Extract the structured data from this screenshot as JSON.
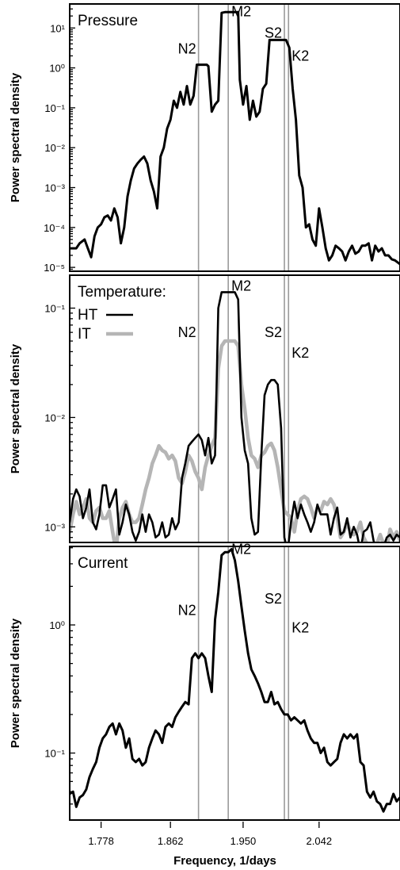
{
  "chart_data": [
    {
      "type": "line",
      "title": "Pressure",
      "ylabel": "Power spectral density",
      "yscale": "log",
      "ylim": [
        8e-06,
        40
      ],
      "xlim": [
        1.74,
        2.14
      ],
      "y_ticks": [
        1e-05,
        0.0001,
        0.001,
        0.01,
        0.1,
        1,
        10
      ],
      "y_tick_labels": [
        "10⁻⁵",
        "10⁻⁴",
        "10⁻³",
        "10⁻²",
        "10⁻¹",
        "10⁰",
        "10¹"
      ],
      "constituents": [
        {
          "name": "N2",
          "x": 1.896,
          "label_y": 3.0
        },
        {
          "name": "M2",
          "x": 1.932,
          "label_y": 26
        },
        {
          "name": "S2",
          "x": 2.0,
          "label_y": 7.5
        },
        {
          "name": "K2",
          "x": 2.005,
          "label_y": 2.0
        }
      ],
      "series": [
        {
          "color": "#000000",
          "x": [
            1.74,
            1.748,
            1.752,
            1.758,
            1.762,
            1.766,
            1.77,
            1.774,
            1.778,
            1.782,
            1.786,
            1.79,
            1.794,
            1.798,
            1.802,
            1.806,
            1.81,
            1.814,
            1.818,
            1.822,
            1.826,
            1.83,
            1.834,
            1.838,
            1.842,
            1.846,
            1.85,
            1.854,
            1.858,
            1.862,
            1.866,
            1.87,
            1.874,
            1.878,
            1.882,
            1.886,
            1.89,
            1.894,
            1.898,
            1.902,
            1.906,
            1.908,
            1.912,
            1.916,
            1.92,
            1.924,
            1.928,
            1.932,
            1.936,
            1.94,
            1.944,
            1.946,
            1.95,
            1.954,
            1.958,
            1.962,
            1.966,
            1.97,
            1.974,
            1.978,
            1.982,
            1.986,
            1.99,
            1.994,
            1.998,
            2.002,
            2.006,
            2.01,
            2.014,
            2.018,
            2.022,
            2.026,
            2.03,
            2.034,
            2.038,
            2.042,
            2.046,
            2.05,
            2.054,
            2.058,
            2.062,
            2.066,
            2.07,
            2.074,
            2.078,
            2.082,
            2.086,
            2.09,
            2.094,
            2.098,
            2.102,
            2.106,
            2.11,
            2.114,
            2.118,
            2.122,
            2.126,
            2.13,
            2.134,
            2.14
          ],
          "y": [
            3e-05,
            3e-05,
            4e-05,
            5e-05,
            3e-05,
            1.8e-05,
            6e-05,
            0.0001,
            0.00012,
            0.00018,
            0.0002,
            0.00015,
            0.0003,
            0.00018,
            4e-05,
            0.0001,
            0.0006,
            0.0015,
            0.003,
            0.004,
            0.005,
            0.006,
            0.004,
            0.0015,
            0.0008,
            0.0003,
            0.006,
            0.01,
            0.03,
            0.05,
            0.15,
            0.1,
            0.25,
            0.12,
            0.35,
            0.12,
            0.2,
            1.2,
            1.2,
            1.2,
            1.2,
            1.1,
            0.08,
            0.12,
            0.15,
            24,
            25,
            25,
            25,
            25,
            25,
            0.5,
            0.12,
            0.35,
            0.05,
            0.15,
            0.06,
            0.08,
            0.3,
            0.4,
            5,
            5,
            5,
            5,
            5,
            5,
            3.2,
            0.3,
            0.05,
            0.002,
            0.001,
            0.0001,
            0.00012,
            5e-05,
            3.5e-05,
            0.0003,
            0.0001,
            3e-05,
            1.5e-05,
            2e-05,
            3.5e-05,
            3e-05,
            2.5e-05,
            1.5e-05,
            2.5e-05,
            3.5e-05,
            2.2e-05,
            2.5e-05,
            3.5e-05,
            3.5e-05,
            4e-05,
            1.5e-05,
            3.5e-05,
            2.5e-05,
            3e-05,
            2e-05,
            2e-05,
            1.6e-05,
            1.5e-05,
            1.2e-05
          ]
        }
      ]
    },
    {
      "type": "line",
      "title": "Temperature:",
      "ylabel": "Power spectral density",
      "yscale": "log",
      "ylim": [
        0.00072,
        0.2
      ],
      "xlim": [
        1.74,
        2.14
      ],
      "y_ticks": [
        0.001,
        0.01,
        0.1
      ],
      "y_tick_labels": [
        "10⁻³",
        "10⁻²",
        "10⁻¹"
      ],
      "legend": {
        "position": "top-left",
        "entries": [
          {
            "label": "HT",
            "color": "#000000"
          },
          {
            "label": "IT",
            "color": "#b5b5b5"
          }
        ]
      },
      "constituents": [
        {
          "name": "N2",
          "x": 1.896,
          "label_y": 0.06
        },
        {
          "name": "M2",
          "x": 1.932,
          "label_y": 0.16
        },
        {
          "name": "S2",
          "x": 2.0,
          "label_y": 0.06
        },
        {
          "name": "K2",
          "x": 2.005,
          "label_y": 0.039
        }
      ],
      "series": [
        {
          "name": "HT",
          "color": "#000000",
          "x": [
            1.74,
            1.744,
            1.748,
            1.752,
            1.756,
            1.76,
            1.764,
            1.768,
            1.772,
            1.776,
            1.78,
            1.784,
            1.788,
            1.792,
            1.796,
            1.8,
            1.804,
            1.808,
            1.812,
            1.816,
            1.82,
            1.824,
            1.828,
            1.832,
            1.836,
            1.84,
            1.844,
            1.848,
            1.852,
            1.856,
            1.86,
            1.864,
            1.868,
            1.872,
            1.876,
            1.88,
            1.884,
            1.888,
            1.892,
            1.896,
            1.9,
            1.904,
            1.908,
            1.912,
            1.916,
            1.92,
            1.924,
            1.928,
            1.932,
            1.936,
            1.94,
            1.944,
            1.948,
            1.952,
            1.956,
            1.96,
            1.964,
            1.968,
            1.972,
            1.976,
            1.98,
            1.984,
            1.988,
            1.992,
            1.996,
            2.0,
            2.004,
            2.008,
            2.012,
            2.016,
            2.02,
            2.024,
            2.028,
            2.032,
            2.036,
            2.04,
            2.044,
            2.048,
            2.052,
            2.056,
            2.06,
            2.064,
            2.068,
            2.072,
            2.076,
            2.08,
            2.084,
            2.088,
            2.092,
            2.096,
            2.1,
            2.104,
            2.108,
            2.112,
            2.116,
            2.12,
            2.124,
            2.128,
            2.132,
            2.136,
            2.14
          ],
          "y": [
            0.0011,
            0.0018,
            0.0022,
            0.0019,
            0.0012,
            0.0015,
            0.0022,
            0.0011,
            0.00095,
            0.0013,
            0.0024,
            0.0024,
            0.0015,
            0.0018,
            0.0022,
            0.00085,
            0.0011,
            0.0016,
            0.0013,
            0.0009,
            0.00075,
            0.0009,
            0.0013,
            0.0009,
            0.0013,
            0.0011,
            0.0008,
            0.00085,
            0.0011,
            0.0008,
            0.00085,
            0.0012,
            0.00095,
            0.0011,
            0.0028,
            0.0038,
            0.0055,
            0.006,
            0.0065,
            0.007,
            0.0062,
            0.0045,
            0.0065,
            0.0038,
            0.0045,
            0.1,
            0.14,
            0.14,
            0.14,
            0.14,
            0.14,
            0.12,
            0.01,
            0.005,
            0.0038,
            0.0012,
            0.00085,
            0.0009,
            0.0045,
            0.016,
            0.02,
            0.022,
            0.022,
            0.02,
            0.008,
            0.0008,
            0.0006,
            0.0011,
            0.0017,
            0.0012,
            0.0016,
            0.0013,
            0.0011,
            0.0009,
            0.0011,
            0.0016,
            0.0013,
            0.0013,
            0.0013,
            0.00085,
            0.0012,
            0.0015,
            0.00085,
            0.0009,
            0.0012,
            0.0008,
            0.001,
            0.00085,
            0.0006,
            0.0009,
            0.00095,
            0.0011,
            0.00075,
            0.0006,
            0.00065,
            0.00065,
            0.0008,
            0.00085,
            0.00075,
            0.00085,
            0.0008
          ]
        },
        {
          "name": "IT",
          "color": "#b5b5b5",
          "x": [
            1.74,
            1.744,
            1.748,
            1.752,
            1.756,
            1.76,
            1.764,
            1.768,
            1.772,
            1.776,
            1.78,
            1.784,
            1.788,
            1.792,
            1.796,
            1.8,
            1.804,
            1.808,
            1.812,
            1.816,
            1.82,
            1.824,
            1.828,
            1.832,
            1.836,
            1.84,
            1.844,
            1.848,
            1.852,
            1.856,
            1.86,
            1.864,
            1.868,
            1.872,
            1.876,
            1.88,
            1.884,
            1.888,
            1.892,
            1.896,
            1.9,
            1.904,
            1.908,
            1.912,
            1.916,
            1.92,
            1.924,
            1.928,
            1.932,
            1.936,
            1.94,
            1.944,
            1.948,
            1.952,
            1.956,
            1.96,
            1.964,
            1.968,
            1.972,
            1.976,
            1.98,
            1.984,
            1.988,
            1.992,
            1.996,
            2.0,
            2.004,
            2.008,
            2.012,
            2.016,
            2.02,
            2.024,
            2.028,
            2.032,
            2.036,
            2.04,
            2.044,
            2.048,
            2.052,
            2.056,
            2.06,
            2.064,
            2.068,
            2.072,
            2.076,
            2.08,
            2.084,
            2.088,
            2.092,
            2.096,
            2.1,
            2.104,
            2.108,
            2.112,
            2.116,
            2.12,
            2.124,
            2.128,
            2.132,
            2.136,
            2.14
          ],
          "y": [
            0.0009,
            0.0013,
            0.0017,
            0.0013,
            0.0015,
            0.0018,
            0.0012,
            0.0011,
            0.0014,
            0.0015,
            0.0012,
            0.0012,
            0.0014,
            0.0009,
            0.0006,
            0.0012,
            0.0015,
            0.0017,
            0.0013,
            0.0011,
            0.0011,
            0.0012,
            0.0016,
            0.0022,
            0.0028,
            0.0038,
            0.0045,
            0.0055,
            0.005,
            0.0048,
            0.0042,
            0.0045,
            0.004,
            0.0028,
            0.0025,
            0.0032,
            0.0045,
            0.004,
            0.0032,
            0.0028,
            0.0022,
            0.0035,
            0.0045,
            0.0055,
            0.0065,
            0.028,
            0.045,
            0.05,
            0.05,
            0.05,
            0.05,
            0.045,
            0.02,
            0.012,
            0.0065,
            0.0045,
            0.0042,
            0.0035,
            0.0045,
            0.0048,
            0.0055,
            0.0058,
            0.005,
            0.0035,
            0.0022,
            0.0014,
            0.0013,
            0.0012,
            0.0009,
            0.0014,
            0.0018,
            0.0019,
            0.0018,
            0.0015,
            0.0012,
            0.0015,
            0.0014,
            0.0017,
            0.0016,
            0.0018,
            0.0016,
            0.0012,
            0.0008,
            0.0009,
            0.0011,
            0.0009,
            0.00085,
            0.0009,
            0.0011,
            0.0008,
            0.0007,
            0.00065,
            0.00065,
            0.0007,
            0.00085,
            0.0007,
            0.00065,
            0.00095,
            0.0008,
            0.0009,
            0.00075
          ]
        }
      ]
    },
    {
      "type": "line",
      "title": "Current",
      "ylabel": "Power spectral density",
      "xlabel": "Frequency, 1/days",
      "yscale": "log",
      "ylim": [
        0.03,
        4.1
      ],
      "xlim": [
        1.74,
        2.14
      ],
      "x_ticks": [
        1.778,
        1.862,
        1.95,
        2.042
      ],
      "x_tick_labels": [
        "1.778",
        "1.862",
        "1.950",
        "2.042"
      ],
      "y_ticks": [
        0.1,
        1
      ],
      "y_tick_labels": [
        "10⁻¹",
        "10⁰"
      ],
      "constituents": [
        {
          "name": "N2",
          "x": 1.896,
          "label_y": 1.3
        },
        {
          "name": "M2",
          "x": 1.932,
          "label_y": 3.9
        },
        {
          "name": "S2",
          "x": 2.0,
          "label_y": 1.6
        },
        {
          "name": "K2",
          "x": 2.005,
          "label_y": 0.95
        }
      ],
      "series": [
        {
          "color": "#000000",
          "x": [
            1.74,
            1.744,
            1.748,
            1.752,
            1.756,
            1.76,
            1.764,
            1.768,
            1.772,
            1.776,
            1.78,
            1.784,
            1.788,
            1.792,
            1.796,
            1.8,
            1.804,
            1.808,
            1.812,
            1.816,
            1.82,
            1.824,
            1.828,
            1.832,
            1.836,
            1.84,
            1.844,
            1.848,
            1.852,
            1.856,
            1.86,
            1.864,
            1.868,
            1.872,
            1.876,
            1.88,
            1.884,
            1.888,
            1.892,
            1.896,
            1.9,
            1.904,
            1.908,
            1.912,
            1.916,
            1.92,
            1.924,
            1.928,
            1.932,
            1.936,
            1.94,
            1.944,
            1.948,
            1.952,
            1.956,
            1.96,
            1.964,
            1.968,
            1.972,
            1.976,
            1.98,
            1.984,
            1.988,
            1.992,
            1.996,
            2.0,
            2.004,
            2.008,
            2.012,
            2.016,
            2.02,
            2.024,
            2.028,
            2.032,
            2.036,
            2.04,
            2.044,
            2.048,
            2.052,
            2.056,
            2.06,
            2.064,
            2.068,
            2.072,
            2.076,
            2.08,
            2.084,
            2.088,
            2.092,
            2.096,
            2.1,
            2.104,
            2.108,
            2.112,
            2.116,
            2.12,
            2.124,
            2.128,
            2.132,
            2.136,
            2.14
          ],
          "y": [
            0.048,
            0.05,
            0.038,
            0.045,
            0.047,
            0.052,
            0.065,
            0.075,
            0.085,
            0.11,
            0.13,
            0.14,
            0.16,
            0.17,
            0.14,
            0.17,
            0.15,
            0.11,
            0.13,
            0.09,
            0.085,
            0.09,
            0.08,
            0.085,
            0.11,
            0.13,
            0.15,
            0.14,
            0.12,
            0.16,
            0.17,
            0.16,
            0.19,
            0.21,
            0.23,
            0.25,
            0.24,
            0.55,
            0.6,
            0.55,
            0.6,
            0.55,
            0.4,
            0.3,
            1.1,
            1.8,
            3.5,
            3.7,
            3.7,
            3.9,
            3.2,
            2.2,
            1.4,
            0.9,
            0.6,
            0.45,
            0.4,
            0.35,
            0.3,
            0.25,
            0.25,
            0.3,
            0.24,
            0.25,
            0.22,
            0.2,
            0.2,
            0.18,
            0.19,
            0.18,
            0.17,
            0.18,
            0.15,
            0.13,
            0.12,
            0.12,
            0.1,
            0.11,
            0.085,
            0.08,
            0.085,
            0.09,
            0.12,
            0.14,
            0.13,
            0.14,
            0.13,
            0.14,
            0.085,
            0.08,
            0.05,
            0.045,
            0.05,
            0.042,
            0.04,
            0.035,
            0.04,
            0.04,
            0.048,
            0.042,
            0.045
          ]
        }
      ]
    }
  ]
}
